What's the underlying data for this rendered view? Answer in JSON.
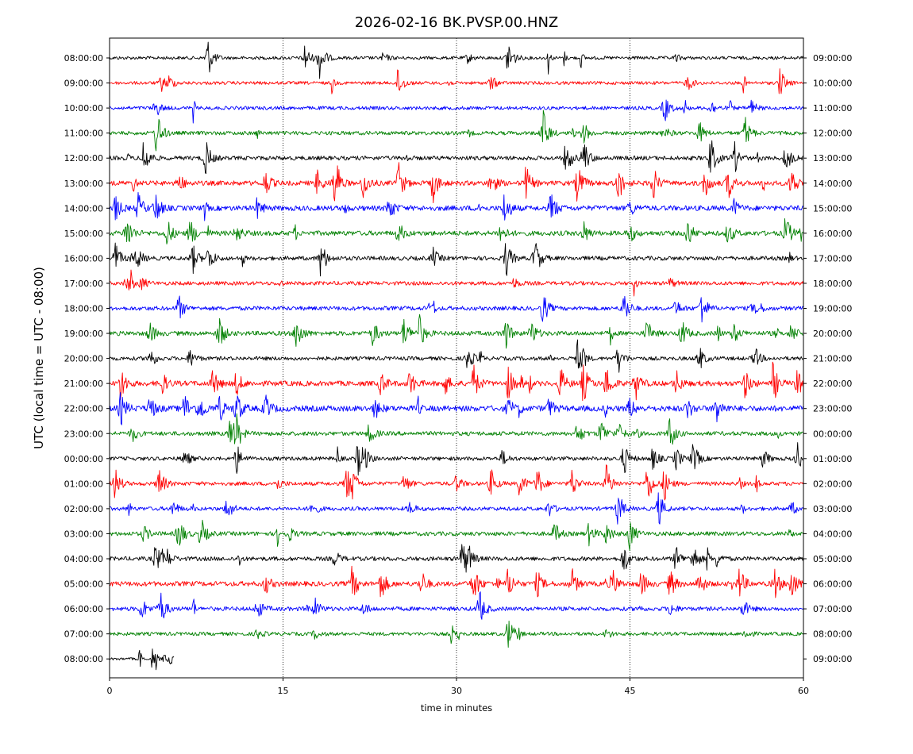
{
  "chart_data": {
    "type": "line",
    "title": "2026-02-16 BK.PVSP.00.HNZ",
    "xlabel": "time in minutes",
    "ylabel": "UTC (local time = UTC - 08:00)",
    "xlim": [
      0,
      60
    ],
    "x_ticks": [
      0,
      15,
      30,
      45,
      60
    ],
    "x_tick_labels": [
      "0",
      "15",
      "30",
      "45",
      "60"
    ],
    "vertical_gridlines_at": [
      15,
      30,
      45
    ],
    "trace_colors": [
      "#000000",
      "#ff0000",
      "#0000ff",
      "#008000"
    ],
    "left_tick_labels": [
      "08:00:00",
      "09:00:00",
      "10:00:00",
      "11:00:00",
      "12:00:00",
      "13:00:00",
      "14:00:00",
      "15:00:00",
      "16:00:00",
      "17:00:00",
      "18:00:00",
      "19:00:00",
      "20:00:00",
      "21:00:00",
      "22:00:00",
      "23:00:00",
      "00:00:00",
      "01:00:00",
      "02:00:00",
      "03:00:00",
      "04:00:00",
      "05:00:00",
      "06:00:00",
      "07:00:00",
      "08:00:00"
    ],
    "right_tick_labels": [
      "09:00:00",
      "10:00:00",
      "11:00:00",
      "12:00:00",
      "13:00:00",
      "14:00:00",
      "15:00:00",
      "16:00:00",
      "17:00:00",
      "18:00:00",
      "19:00:00",
      "20:00:00",
      "21:00:00",
      "22:00:00",
      "23:00:00",
      "00:00:00",
      "01:00:00",
      "02:00:00",
      "03:00:00",
      "04:00:00",
      "05:00:00",
      "06:00:00",
      "07:00:00",
      "08:00:00",
      "09:00:00"
    ],
    "traces": [
      {
        "row": 0,
        "end_minute": 60,
        "noise": 2.0,
        "events": [
          [
            8.5,
            26
          ],
          [
            16.9,
            18
          ],
          [
            18.2,
            26
          ],
          [
            23.7,
            6
          ],
          [
            31.0,
            6
          ],
          [
            34.5,
            26
          ],
          [
            49.0,
            4
          ]
        ]
      },
      {
        "row": 1,
        "end_minute": 60,
        "noise": 2.0,
        "events": [
          [
            4.5,
            10
          ],
          [
            5.2,
            8
          ],
          [
            25.0,
            20
          ],
          [
            33.0,
            10
          ],
          [
            50.0,
            10
          ],
          [
            58.0,
            18
          ]
        ]
      },
      {
        "row": 2,
        "end_minute": 60,
        "noise": 2.2,
        "events": [
          [
            4.0,
            12
          ],
          [
            48.0,
            18
          ],
          [
            52.0,
            10
          ],
          [
            55.5,
            10
          ]
        ]
      },
      {
        "row": 3,
        "end_minute": 60,
        "noise": 2.4,
        "events": [
          [
            4.1,
            30
          ],
          [
            37.5,
            30
          ],
          [
            41.0,
            14
          ],
          [
            48.0,
            8
          ],
          [
            51.0,
            14
          ],
          [
            55.0,
            20
          ]
        ]
      },
      {
        "row": 4,
        "end_minute": 60,
        "noise": 2.6,
        "events": [
          [
            3.0,
            26
          ],
          [
            8.3,
            24
          ],
          [
            39.5,
            22
          ],
          [
            41.0,
            24
          ],
          [
            52.0,
            26
          ],
          [
            54.0,
            22
          ],
          [
            58.5,
            18
          ]
        ]
      },
      {
        "row": 5,
        "end_minute": 60,
        "noise": 3.0,
        "events": [
          [
            6.0,
            12
          ],
          [
            13.5,
            16
          ],
          [
            18.0,
            16
          ],
          [
            19.5,
            26
          ],
          [
            22.0,
            20
          ],
          [
            25.0,
            26
          ],
          [
            28.0,
            22
          ],
          [
            33.0,
            16
          ],
          [
            36.0,
            22
          ],
          [
            40.5,
            26
          ],
          [
            44.0,
            24
          ],
          [
            47.0,
            22
          ],
          [
            51.5,
            18
          ],
          [
            53.5,
            20
          ],
          [
            59.0,
            20
          ]
        ]
      },
      {
        "row": 6,
        "end_minute": 60,
        "noise": 3.2,
        "events": [
          [
            0.5,
            16
          ],
          [
            2.5,
            18
          ],
          [
            4.0,
            20
          ],
          [
            12.8,
            12
          ],
          [
            24.2,
            16
          ],
          [
            34.2,
            22
          ],
          [
            38.2,
            20
          ],
          [
            45.0,
            10
          ],
          [
            54.0,
            10
          ]
        ]
      },
      {
        "row": 7,
        "end_minute": 60,
        "noise": 3.0,
        "events": [
          [
            1.5,
            24
          ],
          [
            5.0,
            18
          ],
          [
            7.0,
            18
          ],
          [
            11.0,
            12
          ],
          [
            25.0,
            14
          ],
          [
            33.8,
            12
          ],
          [
            41.0,
            14
          ],
          [
            45.0,
            12
          ],
          [
            50.0,
            18
          ],
          [
            53.5,
            14
          ],
          [
            58.5,
            22
          ]
        ]
      },
      {
        "row": 8,
        "end_minute": 60,
        "noise": 2.6,
        "events": [
          [
            0.5,
            20
          ],
          [
            2.4,
            14
          ],
          [
            7.2,
            18
          ],
          [
            8.6,
            16
          ],
          [
            18.3,
            24
          ],
          [
            28.0,
            12
          ],
          [
            34.3,
            24
          ],
          [
            36.8,
            26
          ]
        ]
      },
      {
        "row": 9,
        "end_minute": 60,
        "noise": 2.4,
        "events": [
          [
            1.5,
            10
          ],
          [
            2.8,
            8
          ],
          [
            35.0,
            6
          ],
          [
            48.5,
            6
          ]
        ]
      },
      {
        "row": 10,
        "end_minute": 60,
        "noise": 2.6,
        "events": [
          [
            6.0,
            16
          ],
          [
            37.5,
            20
          ],
          [
            44.5,
            22
          ],
          [
            49.0,
            10
          ],
          [
            51.2,
            22
          ],
          [
            56.0,
            10
          ]
        ]
      },
      {
        "row": 11,
        "end_minute": 60,
        "noise": 2.8,
        "events": [
          [
            3.5,
            14
          ],
          [
            9.5,
            22
          ],
          [
            16.2,
            24
          ],
          [
            22.8,
            16
          ],
          [
            25.5,
            20
          ],
          [
            26.8,
            22
          ],
          [
            34.2,
            22
          ],
          [
            36.5,
            16
          ],
          [
            46.5,
            16
          ],
          [
            49.5,
            18
          ],
          [
            54.0,
            12
          ],
          [
            59.0,
            12
          ]
        ]
      },
      {
        "row": 12,
        "end_minute": 60,
        "noise": 2.4,
        "events": [
          [
            3.5,
            14
          ],
          [
            7.0,
            12
          ],
          [
            31.0,
            16
          ],
          [
            40.5,
            22
          ],
          [
            44.0,
            18
          ],
          [
            51.0,
            16
          ],
          [
            55.8,
            14
          ]
        ]
      },
      {
        "row": 13,
        "end_minute": 60,
        "noise": 3.2,
        "events": [
          [
            1.0,
            22
          ],
          [
            4.5,
            16
          ],
          [
            9.0,
            18
          ],
          [
            11.0,
            16
          ],
          [
            23.5,
            14
          ],
          [
            26.0,
            16
          ],
          [
            29.0,
            14
          ],
          [
            31.5,
            22
          ],
          [
            34.5,
            20
          ],
          [
            39.0,
            20
          ],
          [
            41.0,
            24
          ],
          [
            43.0,
            22
          ],
          [
            45.5,
            20
          ],
          [
            49.0,
            16
          ],
          [
            55.0,
            18
          ],
          [
            57.5,
            16
          ],
          [
            59.5,
            16
          ]
        ]
      },
      {
        "row": 14,
        "end_minute": 60,
        "noise": 3.6,
        "events": [
          [
            1.0,
            20
          ],
          [
            3.5,
            16
          ],
          [
            6.5,
            18
          ],
          [
            7.8,
            18
          ],
          [
            9.5,
            16
          ],
          [
            11.0,
            22
          ],
          [
            13.5,
            16
          ],
          [
            23.0,
            12
          ],
          [
            34.5,
            12
          ],
          [
            38.0,
            12
          ],
          [
            45.0,
            12
          ],
          [
            50.0,
            12
          ],
          [
            52.5,
            18
          ]
        ]
      },
      {
        "row": 15,
        "end_minute": 60,
        "noise": 2.6,
        "events": [
          [
            2.0,
            10
          ],
          [
            10.5,
            22
          ],
          [
            11.0,
            18
          ],
          [
            22.5,
            14
          ],
          [
            40.5,
            14
          ],
          [
            42.5,
            18
          ],
          [
            44.0,
            14
          ],
          [
            48.5,
            18
          ]
        ]
      },
      {
        "row": 16,
        "end_minute": 60,
        "noise": 2.4,
        "events": [
          [
            6.5,
            12
          ],
          [
            11.0,
            18
          ],
          [
            21.5,
            20
          ],
          [
            22.0,
            14
          ],
          [
            34.0,
            10
          ],
          [
            44.5,
            20
          ],
          [
            47.0,
            14
          ],
          [
            49.0,
            14
          ],
          [
            50.5,
            20
          ],
          [
            56.5,
            10
          ],
          [
            59.5,
            12
          ]
        ]
      },
      {
        "row": 17,
        "end_minute": 60,
        "noise": 2.4,
        "events": [
          [
            0.5,
            20
          ],
          [
            4.3,
            22
          ],
          [
            14.5,
            8
          ],
          [
            20.5,
            22
          ],
          [
            21.0,
            16
          ],
          [
            25.5,
            12
          ],
          [
            30.0,
            10
          ],
          [
            33.0,
            18
          ],
          [
            35.5,
            16
          ],
          [
            37.0,
            20
          ],
          [
            40.0,
            18
          ],
          [
            43.0,
            24
          ],
          [
            46.5,
            22
          ],
          [
            48.0,
            20
          ]
        ]
      },
      {
        "row": 18,
        "end_minute": 60,
        "noise": 2.4,
        "events": [
          [
            5.5,
            10
          ],
          [
            10.2,
            16
          ],
          [
            17.5,
            10
          ],
          [
            26.0,
            8
          ],
          [
            38.0,
            10
          ],
          [
            44.0,
            22
          ],
          [
            47.5,
            22
          ],
          [
            59.0,
            8
          ]
        ]
      },
      {
        "row": 19,
        "end_minute": 60,
        "noise": 2.6,
        "events": [
          [
            3.0,
            10
          ],
          [
            6.0,
            22
          ],
          [
            8.0,
            16
          ],
          [
            15.5,
            10
          ],
          [
            38.5,
            14
          ],
          [
            41.5,
            14
          ],
          [
            43.0,
            14
          ],
          [
            45.0,
            20
          ]
        ]
      },
      {
        "row": 20,
        "end_minute": 60,
        "noise": 2.6,
        "events": [
          [
            4.0,
            18
          ],
          [
            5.0,
            10
          ],
          [
            19.5,
            10
          ],
          [
            30.5,
            22
          ],
          [
            31.0,
            16
          ],
          [
            44.5,
            20
          ],
          [
            49.0,
            16
          ],
          [
            50.5,
            18
          ],
          [
            52.5,
            10
          ]
        ]
      },
      {
        "row": 21,
        "end_minute": 60,
        "noise": 3.0,
        "events": [
          [
            13.5,
            12
          ],
          [
            21.0,
            22
          ],
          [
            23.5,
            20
          ],
          [
            27.0,
            16
          ],
          [
            31.5,
            24
          ],
          [
            34.5,
            20
          ],
          [
            37.0,
            16
          ],
          [
            40.0,
            18
          ],
          [
            43.5,
            18
          ],
          [
            46.0,
            16
          ],
          [
            48.5,
            18
          ],
          [
            51.0,
            16
          ],
          [
            54.5,
            20
          ],
          [
            57.5,
            20
          ],
          [
            59.0,
            22
          ]
        ]
      },
      {
        "row": 22,
        "end_minute": 60,
        "noise": 2.6,
        "events": [
          [
            2.8,
            14
          ],
          [
            4.4,
            24
          ],
          [
            12.8,
            14
          ],
          [
            17.8,
            12
          ],
          [
            22.0,
            8
          ],
          [
            32.0,
            24
          ],
          [
            48.5,
            8
          ],
          [
            54.8,
            12
          ]
        ]
      },
      {
        "row": 23,
        "end_minute": 60,
        "noise": 2.2,
        "events": [
          [
            12.8,
            6
          ],
          [
            17.8,
            6
          ],
          [
            34.5,
            22
          ],
          [
            43.0,
            6
          ],
          [
            55.0,
            6
          ]
        ]
      },
      {
        "row": 24,
        "end_minute": 5.6,
        "noise": 1.6,
        "events": [
          [
            4.8,
            5
          ],
          [
            5.3,
            4
          ]
        ]
      }
    ],
    "sparse_spikes_per_row": 3
  }
}
